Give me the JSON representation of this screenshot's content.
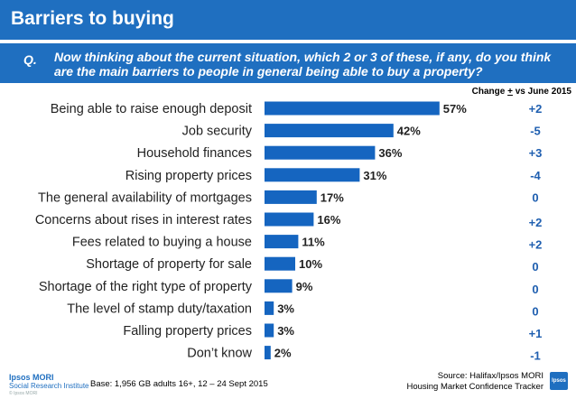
{
  "header": {
    "title": "Barriers to buying",
    "question_label": "Q.",
    "question_text": "Now thinking about the current situation, which 2 or 3 of these, if any, do you think are the main barriers to people in general being able to buy a property?"
  },
  "change_header": {
    "prefix": "Change ",
    "symbol": "+",
    "suffix": " vs June 2015"
  },
  "footer": {
    "logo_top": "Ipsos MORI",
    "logo_bottom": "Social Research Institute",
    "copyright": "© Ipsos MORI",
    "base": "Base:  1,956  GB adults 16+, 12 – 24 Sept 2015",
    "source_line1": "Source: Halifax/Ipsos MORI",
    "source_line2": "Housing Market Confidence Tracker",
    "badge": "Ipsos"
  },
  "colors": {
    "bar": "#1565c0",
    "header_bg": "#1f6fc0",
    "change_text": "#1f5fb0"
  },
  "chart_data": {
    "type": "bar",
    "orientation": "horizontal",
    "categories": [
      "Being able to raise enough deposit",
      "Job security",
      "Household finances",
      "Rising property prices",
      "The general availability of mortgages",
      "Concerns about rises in interest rates",
      "Fees related to buying a house",
      "Shortage of property for sale",
      "Shortage of the right type of property",
      "The level of stamp duty/taxation",
      "Falling property prices",
      "Don’t know"
    ],
    "values": [
      57,
      42,
      36,
      31,
      17,
      16,
      11,
      10,
      9,
      3,
      3,
      2
    ],
    "value_labels": [
      "57%",
      "42%",
      "36%",
      "31%",
      "17%",
      "16%",
      "11%",
      "10%",
      "9%",
      "3%",
      "3%",
      "2%"
    ],
    "change_labels": [
      "+2",
      "-5",
      "+3",
      "-4",
      "0",
      "+2",
      "+2",
      "0",
      "0",
      "0",
      "+1",
      "-1"
    ],
    "xlim": [
      0,
      100
    ],
    "grid": false,
    "legend": "none"
  }
}
